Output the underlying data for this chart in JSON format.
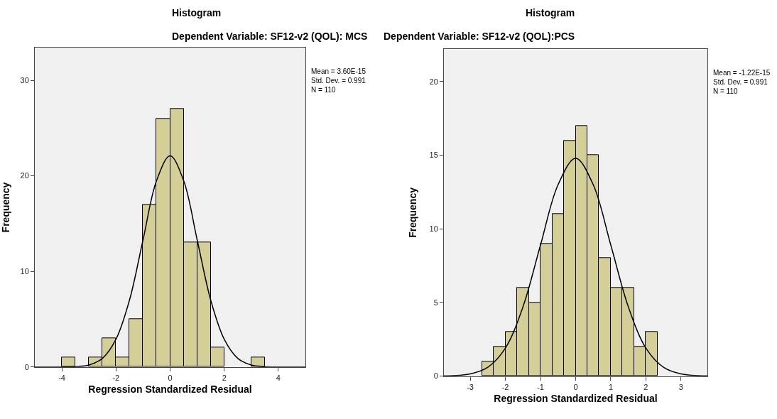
{
  "chart_data": [
    {
      "type": "histogram",
      "title": "Histogram",
      "subtitle": "Dependent Variable: SF12-v2 (QOL): MCS",
      "xlabel": "Regression Standardized Residual",
      "ylabel": "Frequency",
      "annotations": [
        "Mean = 3.60E-15\nStd. Dev. = 0.991\nN = 110"
      ],
      "series": [
        {
          "type": "histogram",
          "color": "#d3cf97",
          "bins": [
            -4,
            -3.5,
            -3,
            -2.5,
            -2,
            -1.5,
            -1,
            -0.5,
            0,
            0.5,
            1,
            1.5,
            2,
            2.5,
            3,
            3.5
          ],
          "values": [
            1,
            0,
            1,
            3,
            1,
            5,
            17,
            26,
            27,
            13,
            13,
            2,
            0,
            0,
            1
          ]
        },
        {
          "type": "line",
          "color": "#000000",
          "x": [
            -5,
            -4,
            -3.5,
            -3,
            -2.5,
            -2,
            -1.5,
            -1,
            -0.5,
            0,
            0.5,
            1,
            1.5,
            2,
            2.5,
            3,
            3.5,
            4,
            5
          ],
          "values": [
            0,
            0,
            0.04,
            0.2,
            0.9,
            2.9,
            7.0,
            13.3,
            19.5,
            22.1,
            19.5,
            13.3,
            7.0,
            2.9,
            0.9,
            0.2,
            0.04,
            0,
            0
          ]
        }
      ],
      "xlim": [
        -5,
        5
      ],
      "xticks": [
        -4,
        -2,
        0,
        2,
        4
      ],
      "ylim": [
        0,
        33.4
      ],
      "yticks": [
        0,
        10,
        20,
        30
      ],
      "grid": false
    },
    {
      "type": "histogram",
      "title": "Histogram",
      "subtitle": "Dependent Variable: SF12-v2 (QOL):PCS",
      "xlabel": "Regression Standardized Residual",
      "ylabel": "Frequency",
      "annotations": [
        "Mean = -1.22E-15\nStd. Dev. = 0.991\nN = 110"
      ],
      "series": [
        {
          "type": "histogram",
          "color": "#d3cf97",
          "bins": [
            -2.667,
            -2.333,
            -2,
            -1.667,
            -1.333,
            -1,
            -0.667,
            -0.333,
            0,
            0.333,
            0.667,
            1,
            1.333,
            1.667,
            2,
            2.333
          ],
          "values": [
            1,
            2,
            3,
            6,
            5,
            9,
            11,
            16,
            17,
            15,
            8,
            6,
            6,
            2,
            3
          ]
        },
        {
          "type": "line",
          "color": "#000000",
          "x": [
            -3.75,
            -3,
            -2.5,
            -2,
            -1.5,
            -1,
            -0.5,
            0,
            0.5,
            1,
            1.5,
            2,
            2.5,
            3,
            3.75
          ],
          "values": [
            0.01,
            0.15,
            0.6,
            1.9,
            4.7,
            8.9,
            13.0,
            14.8,
            13.0,
            8.9,
            4.7,
            1.9,
            0.6,
            0.15,
            0.01
          ]
        }
      ],
      "xlim": [
        -3.75,
        3.75
      ],
      "xticks": [
        -3,
        -2,
        -1,
        0,
        1,
        2,
        3
      ],
      "ylim": [
        0,
        22.2
      ],
      "yticks": [
        0,
        5,
        10,
        15,
        20
      ],
      "grid": false
    }
  ]
}
